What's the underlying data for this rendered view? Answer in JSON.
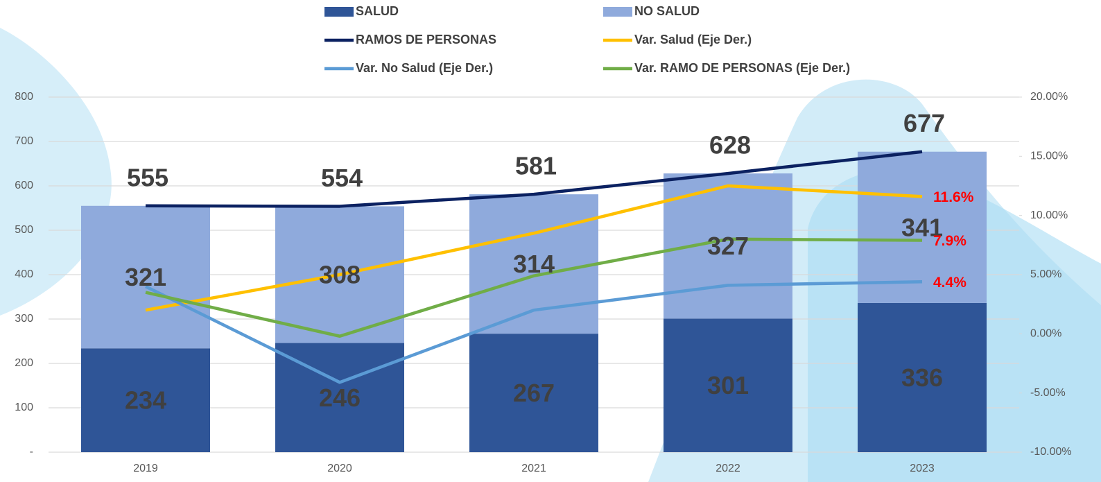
{
  "chart_data": {
    "type": "bar",
    "stacked": true,
    "categories": [
      "2019",
      "2020",
      "2021",
      "2022",
      "2023"
    ],
    "series": [
      {
        "name": "SALUD",
        "type": "bar",
        "color": "#2f5597",
        "labels": true,
        "values": [
          234,
          246,
          267,
          301,
          336
        ]
      },
      {
        "name": "NO SALUD",
        "type": "bar",
        "color": "#8faadc",
        "labels": true,
        "values": [
          321,
          308,
          314,
          327,
          341
        ]
      },
      {
        "name": "RAMOS DE PERSONAS",
        "type": "line",
        "color": "#0b2161",
        "labels": true,
        "values": [
          555,
          554,
          581,
          628,
          677
        ]
      },
      {
        "name": "Var. Salud (Eje Der.)",
        "type": "line",
        "axis": "y2",
        "color": "#ffc000",
        "values": [
          2.0,
          5.0,
          8.5,
          12.5,
          11.6
        ],
        "value_labels": [
          null,
          null,
          null,
          null,
          "11.6%"
        ]
      },
      {
        "name": "Var. No Salud (Eje Der.)",
        "type": "line",
        "axis": "y2",
        "color": "#5b9bd5",
        "values": [
          4.0,
          -4.1,
          2.0,
          4.1,
          4.4
        ],
        "value_labels": [
          null,
          null,
          null,
          null,
          "4.4%"
        ]
      },
      {
        "name": "Var. RAMO DE PERSONAS (Eje Der.)",
        "type": "line",
        "axis": "y2",
        "color": "#70ad47",
        "values": [
          3.5,
          -0.2,
          4.9,
          8.0,
          7.9
        ],
        "value_labels": [
          null,
          null,
          null,
          null,
          "7.9%"
        ]
      }
    ],
    "ylim": [
      0,
      800
    ],
    "yticks": [
      {
        "value": 0,
        "label": "-"
      },
      100,
      200,
      300,
      400,
      500,
      600,
      700,
      800
    ],
    "y2lim": [
      -10,
      20
    ],
    "y2ticks": [
      {
        "value": -10,
        "label": "-10.00%"
      },
      {
        "value": -5,
        "label": "-5.00%"
      },
      {
        "value": 0,
        "label": "0.00%"
      },
      {
        "value": 5,
        "label": "5.00%"
      },
      {
        "value": 10,
        "label": "10.00%"
      },
      {
        "value": 15,
        "label": "15.00%"
      },
      {
        "value": 20,
        "label": "20.00%"
      }
    ],
    "grid": true,
    "legend": "top"
  }
}
